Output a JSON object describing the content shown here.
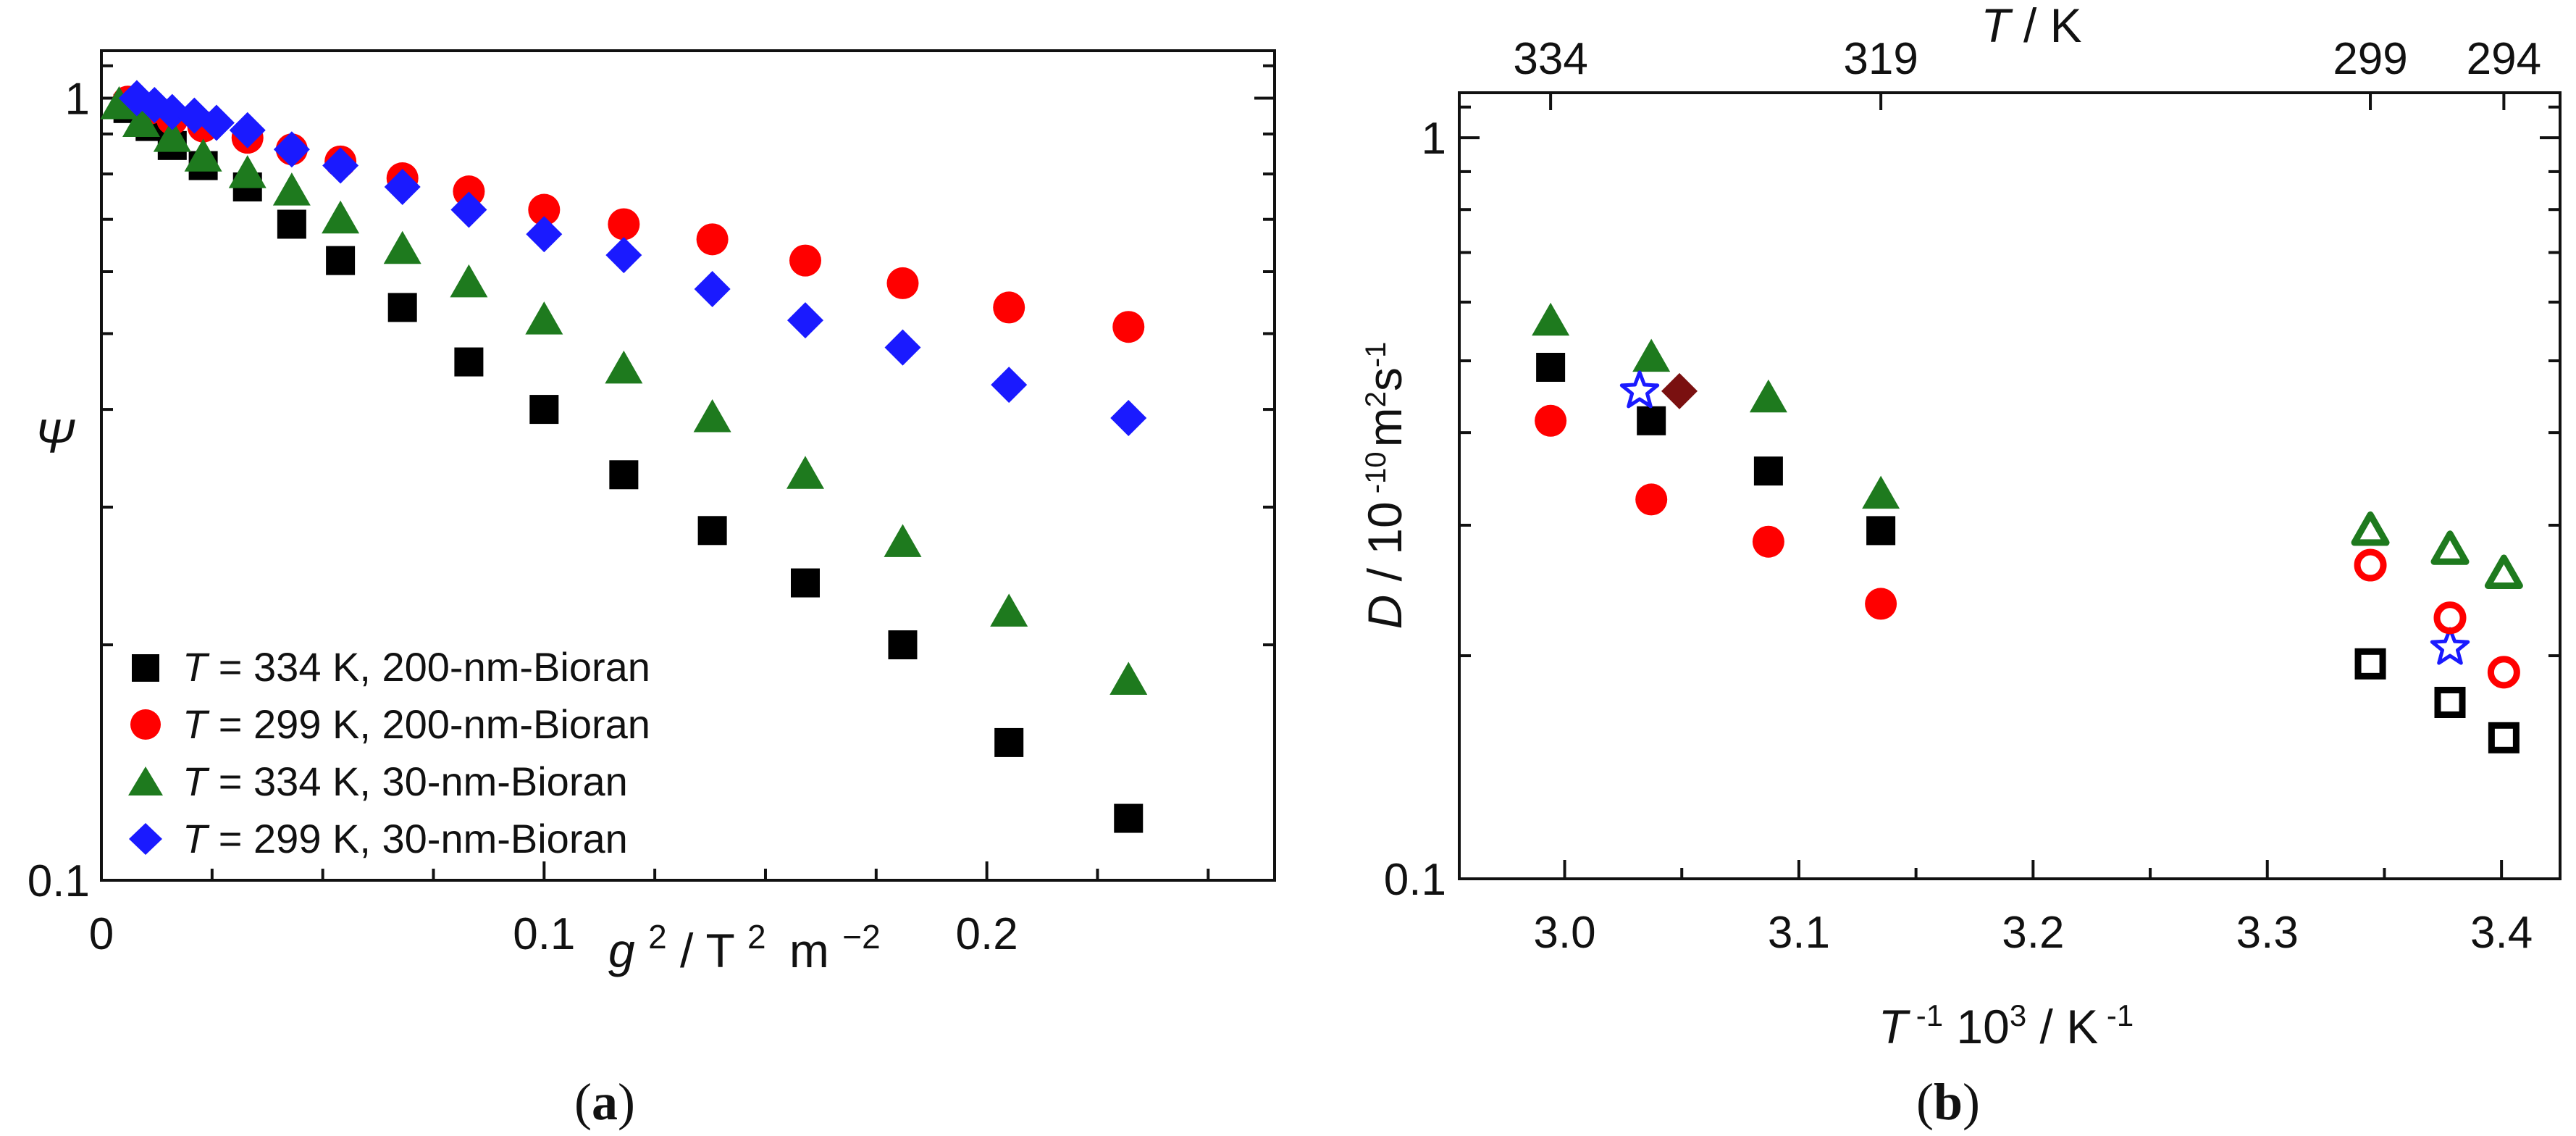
{
  "chart_data": [
    {
      "id": "a",
      "panel_label": "a",
      "type": "scatter",
      "y_scale": "log",
      "y_symbol": "Ψ",
      "x_title": {
        "g": "g",
        "g_exp": "2",
        "mid": "/ T",
        "t_exp": "2",
        "m": "m",
        "m_exp": "−2"
      },
      "xlim": [
        0,
        0.265
      ],
      "ylim": [
        0.1,
        1.15
      ],
      "x_ticks": [
        "0",
        "0.1",
        "0.2"
      ],
      "x_tick_values": [
        0,
        0.1,
        0.2
      ],
      "y_ticks": [
        "0.1",
        "1"
      ],
      "y_tick_values": [
        0.1,
        1
      ],
      "legend_position": "bottom-left",
      "series": [
        {
          "name": "T = 334 K, 200-nm-Bioran",
          "t_symbol": "T",
          "label_rest": " = 334 K, 200-nm-Bioran",
          "marker": "square",
          "filled": true,
          "color": "#000000",
          "x": [
            0.006,
            0.011,
            0.016,
            0.023,
            0.033,
            0.043,
            0.054,
            0.068,
            0.083,
            0.1,
            0.118,
            0.138,
            0.159,
            0.181,
            0.205,
            0.232
          ],
          "y": [
            0.97,
            0.92,
            0.87,
            0.82,
            0.77,
            0.69,
            0.62,
            0.54,
            0.46,
            0.4,
            0.33,
            0.28,
            0.24,
            0.2,
            0.15,
            0.12
          ]
        },
        {
          "name": "T = 299 K, 200-nm-Bioran",
          "t_symbol": "T",
          "label_rest": " = 299 K, 200-nm-Bioran",
          "marker": "circle",
          "filled": true,
          "color": "#ff0000",
          "x": [
            0.006,
            0.011,
            0.016,
            0.023,
            0.033,
            0.043,
            0.054,
            0.068,
            0.083,
            0.1,
            0.118,
            0.138,
            0.159,
            0.181,
            0.205,
            0.232
          ],
          "y": [
            0.99,
            0.97,
            0.94,
            0.92,
            0.89,
            0.86,
            0.83,
            0.79,
            0.76,
            0.72,
            0.69,
            0.66,
            0.62,
            0.58,
            0.54,
            0.51
          ]
        },
        {
          "name": "T = 334 K, 30-nm-Bioran",
          "t_symbol": "T",
          "label_rest": " = 334 K, 30-nm-Bioran",
          "marker": "triangle",
          "filled": true,
          "color": "#1e7a1e",
          "x": [
            0.004,
            0.009,
            0.016,
            0.023,
            0.033,
            0.043,
            0.054,
            0.068,
            0.083,
            0.1,
            0.118,
            0.138,
            0.159,
            0.181,
            0.205,
            0.232
          ],
          "y": [
            0.98,
            0.93,
            0.89,
            0.84,
            0.8,
            0.76,
            0.7,
            0.64,
            0.58,
            0.52,
            0.45,
            0.39,
            0.33,
            0.27,
            0.22,
            0.18
          ]
        },
        {
          "name": "T = 299 K, 30-nm-Bioran",
          "t_symbol": "T",
          "label_rest": " = 299 K, 30-nm-Bioran",
          "marker": "diamond",
          "filled": true,
          "color": "#1a1aff",
          "x": [
            0.008,
            0.012,
            0.016,
            0.021,
            0.026,
            0.033,
            0.043,
            0.054,
            0.068,
            0.083,
            0.1,
            0.118,
            0.138,
            0.159,
            0.181,
            0.205,
            0.232
          ],
          "y": [
            1.0,
            0.98,
            0.96,
            0.95,
            0.93,
            0.91,
            0.86,
            0.82,
            0.77,
            0.72,
            0.67,
            0.63,
            0.57,
            0.52,
            0.48,
            0.43,
            0.39
          ]
        }
      ]
    },
    {
      "id": "b",
      "panel_label": "b",
      "type": "scatter",
      "y_scale": "log",
      "y_title": {
        "d": "D",
        "mid": " / 10",
        "exp1": " -10",
        "m": "m",
        "exp2": "2",
        "s": "s",
        "exp3": "-1"
      },
      "x_title": {
        "t": "T",
        "exp1": " -1",
        "mid": " 10",
        "exp2": "3",
        "k": " / K",
        "exp3": " -1"
      },
      "top_title": {
        "t": "T",
        "rest": " / K"
      },
      "xlim": [
        2.955,
        3.425
      ],
      "ylim": [
        0.1,
        1.15
      ],
      "x_ticks": [
        "3.0",
        "3.1",
        "3.2",
        "3.3",
        "3.4"
      ],
      "x_tick_values": [
        3.0,
        3.1,
        3.2,
        3.3,
        3.4
      ],
      "top_ticks": [
        "334",
        "319",
        "299",
        "294"
      ],
      "top_tick_values": [
        2.994,
        3.135,
        3.344,
        3.401
      ],
      "y_ticks": [
        "0.1",
        "1"
      ],
      "y_tick_values": [
        0.1,
        1
      ],
      "series": [
        {
          "name": "black filled squares",
          "marker": "square",
          "filled": true,
          "color": "#000000",
          "x": [
            2.994,
            3.037,
            3.087,
            3.135
          ],
          "y": [
            0.49,
            0.415,
            0.355,
            0.295
          ]
        },
        {
          "name": "red filled circles",
          "marker": "circle",
          "filled": true,
          "color": "#ff0000",
          "x": [
            2.994,
            3.037,
            3.087,
            3.135
          ],
          "y": [
            0.415,
            0.325,
            0.285,
            0.235
          ]
        },
        {
          "name": "green filled triangles",
          "marker": "triangle",
          "filled": true,
          "color": "#1e7a1e",
          "x": [
            2.994,
            3.037,
            3.087,
            3.135
          ],
          "y": [
            0.565,
            0.505,
            0.445,
            0.33
          ]
        },
        {
          "name": "blue star",
          "marker": "star",
          "filled": false,
          "color": "#1a1aff",
          "x": [
            3.032,
            3.378
          ],
          "y": [
            0.455,
            0.205
          ]
        },
        {
          "name": "dark red diamond",
          "marker": "diamond",
          "filled": true,
          "color": "#7a1010",
          "x": [
            3.049
          ],
          "y": [
            0.455
          ]
        },
        {
          "name": "black open squares",
          "marker": "square",
          "filled": false,
          "color": "#000000",
          "x": [
            3.344,
            3.378,
            3.401
          ],
          "y": [
            0.195,
            0.173,
            0.155
          ]
        },
        {
          "name": "red open circles",
          "marker": "circle",
          "filled": false,
          "color": "#ff0000",
          "x": [
            3.344,
            3.378,
            3.401
          ],
          "y": [
            0.265,
            0.225,
            0.19
          ]
        },
        {
          "name": "green open triangles",
          "marker": "triangle",
          "filled": false,
          "color": "#1e7a1e",
          "x": [
            3.344,
            3.378,
            3.401
          ],
          "y": [
            0.295,
            0.278,
            0.258
          ]
        }
      ]
    }
  ]
}
